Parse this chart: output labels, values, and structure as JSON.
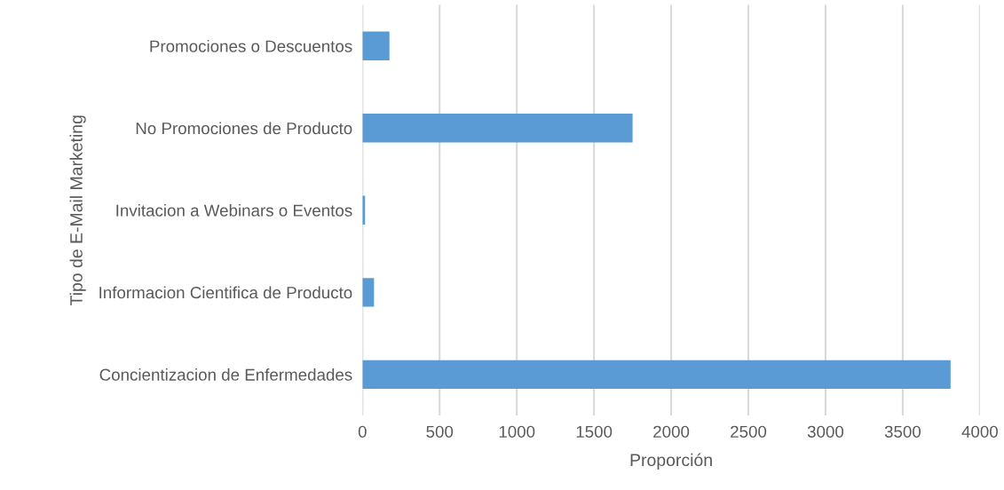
{
  "chart_data": {
    "type": "bar",
    "orientation": "horizontal",
    "xlabel": "Proporción",
    "ylabel": "Tipo de E-Mail Marketing",
    "categories": [
      "Promociones o Descuentos",
      "No Promociones de Producto",
      "Invitacion a Webinars o Eventos",
      "Informacion Cientifica de Producto",
      "Concientizacion de Enfermedades"
    ],
    "values": [
      175,
      1750,
      17,
      75,
      3810
    ],
    "color": "#5b9bd5",
    "xlim": [
      0,
      4000
    ],
    "xticks": [
      0,
      500,
      1000,
      1500,
      2000,
      2500,
      3000,
      3500,
      4000
    ],
    "grid": "x"
  }
}
